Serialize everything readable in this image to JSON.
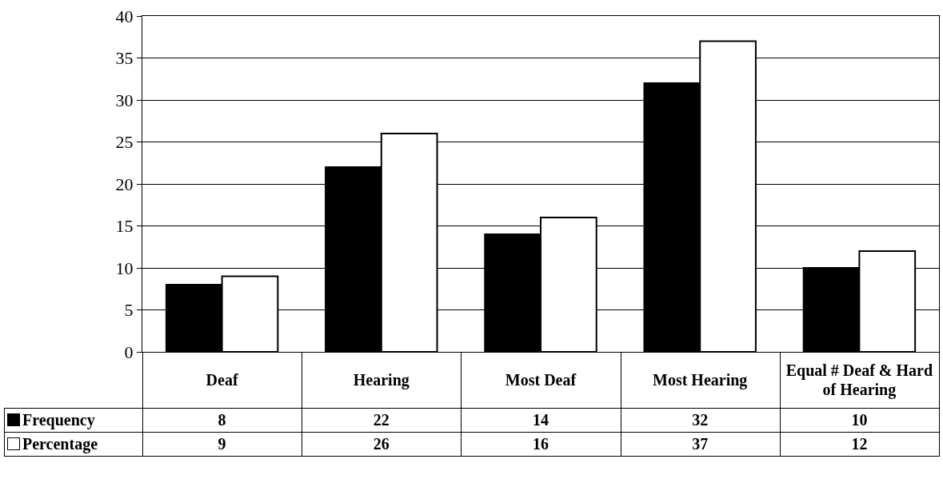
{
  "chart_data": {
    "type": "bar",
    "categories": [
      "Deaf",
      "Hearing",
      "Most Deaf",
      "Most Hearing",
      "Equal # Deaf & Hard of Hearing"
    ],
    "series": [
      {
        "name": "Frequency",
        "color": "#000000",
        "values": [
          8,
          22,
          14,
          32,
          10
        ]
      },
      {
        "name": "Percentage",
        "color": "#ffffff",
        "values": [
          9,
          26,
          16,
          37,
          12
        ]
      }
    ],
    "ylim": [
      0,
      40
    ],
    "yticks": [
      0,
      5,
      10,
      15,
      20,
      25,
      30,
      35,
      40
    ],
    "grid": "y",
    "data_labels": true,
    "legend": "bottom left"
  }
}
